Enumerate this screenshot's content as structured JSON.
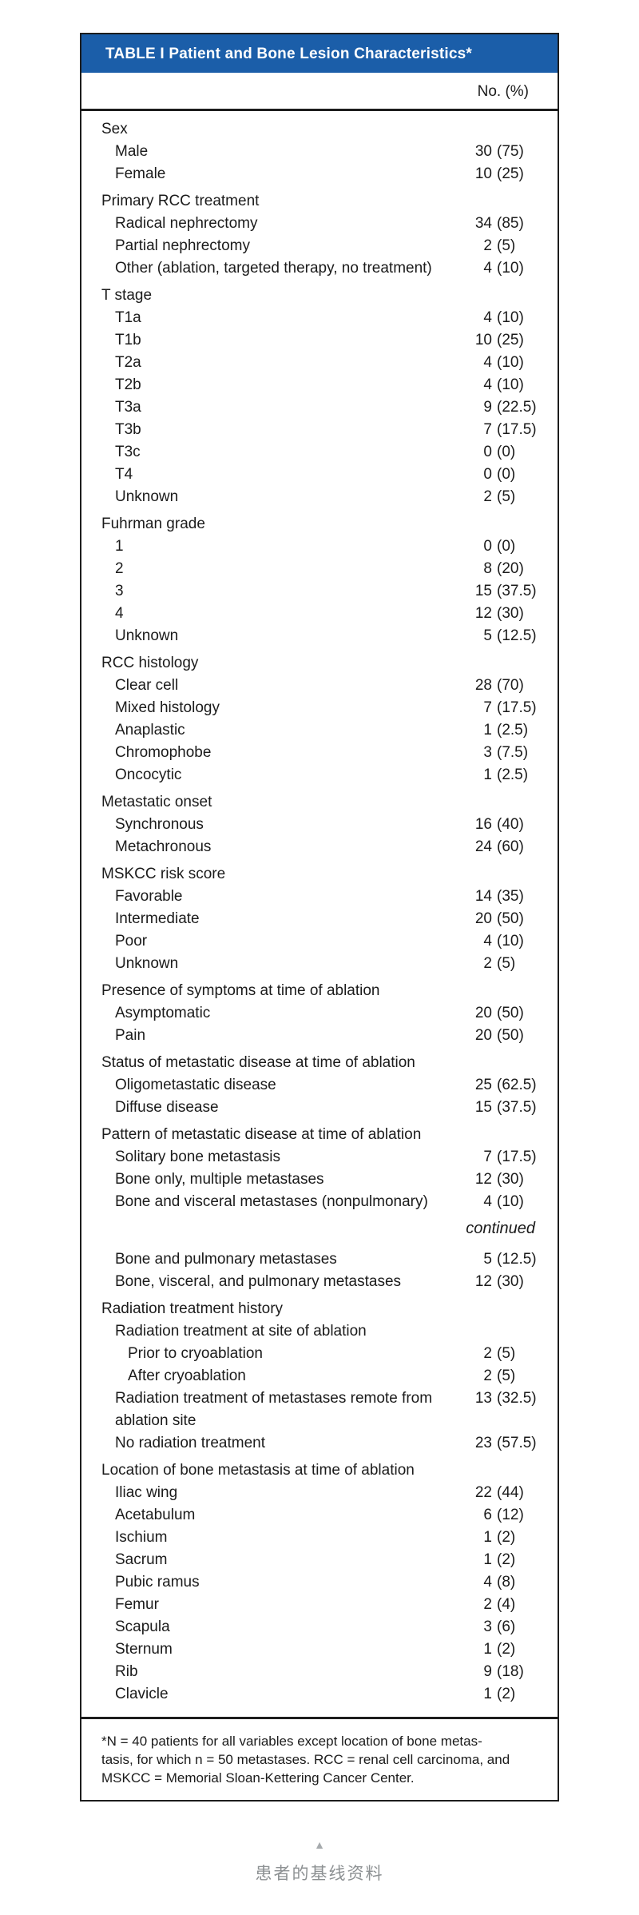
{
  "page": {
    "caption_arrow": "▲",
    "caption_text": "患者的基线资料"
  },
  "table": {
    "accent_color": "#1b5ea9",
    "title": "TABLE I Patient and Bone Lesion Characteristics*",
    "column_header": "No. (%)",
    "continued_label": "continued",
    "sections": [
      {
        "label": "Sex",
        "rows": [
          {
            "label": "Male",
            "num": "30",
            "pct": "(75)"
          },
          {
            "label": "Female",
            "num": "10",
            "pct": "(25)"
          }
        ]
      },
      {
        "label": "Primary RCC treatment",
        "rows": [
          {
            "label": "Radical nephrectomy",
            "num": "34",
            "pct": "(85)"
          },
          {
            "label": "Partial nephrectomy",
            "num": "2",
            "pct": "(5)"
          },
          {
            "label": "Other (ablation, targeted therapy, no treatment)",
            "num": "4",
            "pct": "(10)"
          }
        ]
      },
      {
        "label": "T stage",
        "rows": [
          {
            "label": "T1a",
            "num": "4",
            "pct": "(10)"
          },
          {
            "label": "T1b",
            "num": "10",
            "pct": "(25)"
          },
          {
            "label": "T2a",
            "num": "4",
            "pct": "(10)"
          },
          {
            "label": "T2b",
            "num": "4",
            "pct": "(10)"
          },
          {
            "label": "T3a",
            "num": "9",
            "pct": "(22.5)"
          },
          {
            "label": "T3b",
            "num": "7",
            "pct": "(17.5)"
          },
          {
            "label": "T3c",
            "num": "0",
            "pct": "(0)"
          },
          {
            "label": "T4",
            "num": "0",
            "pct": "(0)"
          },
          {
            "label": "Unknown",
            "num": "2",
            "pct": "(5)"
          }
        ]
      },
      {
        "label": "Fuhrman grade",
        "rows": [
          {
            "label": "1",
            "num": "0",
            "pct": "(0)"
          },
          {
            "label": "2",
            "num": "8",
            "pct": "(20)"
          },
          {
            "label": "3",
            "num": "15",
            "pct": "(37.5)"
          },
          {
            "label": "4",
            "num": "12",
            "pct": "(30)"
          },
          {
            "label": "Unknown",
            "num": "5",
            "pct": "(12.5)"
          }
        ]
      },
      {
        "label": "RCC histology",
        "rows": [
          {
            "label": "Clear cell",
            "num": "28",
            "pct": "(70)"
          },
          {
            "label": "Mixed histology",
            "num": "7",
            "pct": "(17.5)"
          },
          {
            "label": "Anaplastic",
            "num": "1",
            "pct": "(2.5)"
          },
          {
            "label": "Chromophobe",
            "num": "3",
            "pct": "(7.5)"
          },
          {
            "label": "Oncocytic",
            "num": "1",
            "pct": "(2.5)"
          }
        ]
      },
      {
        "label": "Metastatic onset",
        "rows": [
          {
            "label": "Synchronous",
            "num": "16",
            "pct": "(40)"
          },
          {
            "label": "Metachronous",
            "num": "24",
            "pct": "(60)"
          }
        ]
      },
      {
        "label": "MSKCC risk score",
        "rows": [
          {
            "label": "Favorable",
            "num": "14",
            "pct": "(35)"
          },
          {
            "label": "Intermediate",
            "num": "20",
            "pct": "(50)"
          },
          {
            "label": "Poor",
            "num": "4",
            "pct": "(10)"
          },
          {
            "label": "Unknown",
            "num": "2",
            "pct": "(5)"
          }
        ]
      },
      {
        "label": "Presence of symptoms at time of ablation",
        "rows": [
          {
            "label": "Asymptomatic",
            "num": "20",
            "pct": "(50)"
          },
          {
            "label": "Pain",
            "num": "20",
            "pct": "(50)"
          }
        ]
      },
      {
        "label": "Status of metastatic disease at time of ablation",
        "rows": [
          {
            "label": "Oligometastatic disease",
            "num": "25",
            "pct": "(62.5)"
          },
          {
            "label": "Diffuse disease",
            "num": "15",
            "pct": "(37.5)"
          }
        ]
      },
      {
        "label": "Pattern of metastatic disease at time of ablation",
        "rows": [
          {
            "label": "Solitary bone metastasis",
            "num": "7",
            "pct": "(17.5)"
          },
          {
            "label": "Bone only, multiple metastases",
            "num": "12",
            "pct": "(30)"
          },
          {
            "label": "Bone and visceral metastases (nonpulmonary)",
            "num": "4",
            "pct": "(10)"
          },
          {
            "type": "continued"
          },
          {
            "label": "Bone and pulmonary metastases",
            "num": "5",
            "pct": "(12.5)"
          },
          {
            "label": "Bone, visceral, and pulmonary metastases",
            "num": "12",
            "pct": "(30)"
          }
        ]
      },
      {
        "label": "Radiation treatment history",
        "rows": [
          {
            "label": "Radiation treatment at site of ablation",
            "num": "",
            "pct": ""
          },
          {
            "label": "Prior to cryoablation",
            "indent": 2,
            "num": "2",
            "pct": "(5)"
          },
          {
            "label": "After cryoablation",
            "indent": 2,
            "num": "2",
            "pct": "(5)"
          },
          {
            "label": "Radiation treatment of metastases remote from ablation site",
            "wrap": true,
            "num": "13",
            "pct": "(32.5)"
          },
          {
            "label": "No radiation treatment",
            "num": "23",
            "pct": "(57.5)"
          }
        ]
      },
      {
        "label": "Location of bone metastasis at time of ablation",
        "rows": [
          {
            "label": "Iliac wing",
            "num": "22",
            "pct": "(44)"
          },
          {
            "label": "Acetabulum",
            "num": "6",
            "pct": "(12)"
          },
          {
            "label": "Ischium",
            "num": "1",
            "pct": "(2)"
          },
          {
            "label": "Sacrum",
            "num": "1",
            "pct": "(2)"
          },
          {
            "label": "Pubic ramus",
            "num": "4",
            "pct": "(8)"
          },
          {
            "label": "Femur",
            "num": "2",
            "pct": "(4)"
          },
          {
            "label": "Scapula",
            "num": "3",
            "pct": "(6)"
          },
          {
            "label": "Sternum",
            "num": "1",
            "pct": "(2)"
          },
          {
            "label": "Rib",
            "num": "9",
            "pct": "(18)"
          },
          {
            "label": "Clavicle",
            "num": "1",
            "pct": "(2)"
          }
        ]
      }
    ],
    "footnote_lines": [
      "*N = 40 patients for all variables except location of bone metas-",
      "tasis, for which n = 50 metastases. RCC = renal cell carcinoma, and",
      "MSKCC = Memorial Sloan-Kettering Cancer Center."
    ]
  }
}
